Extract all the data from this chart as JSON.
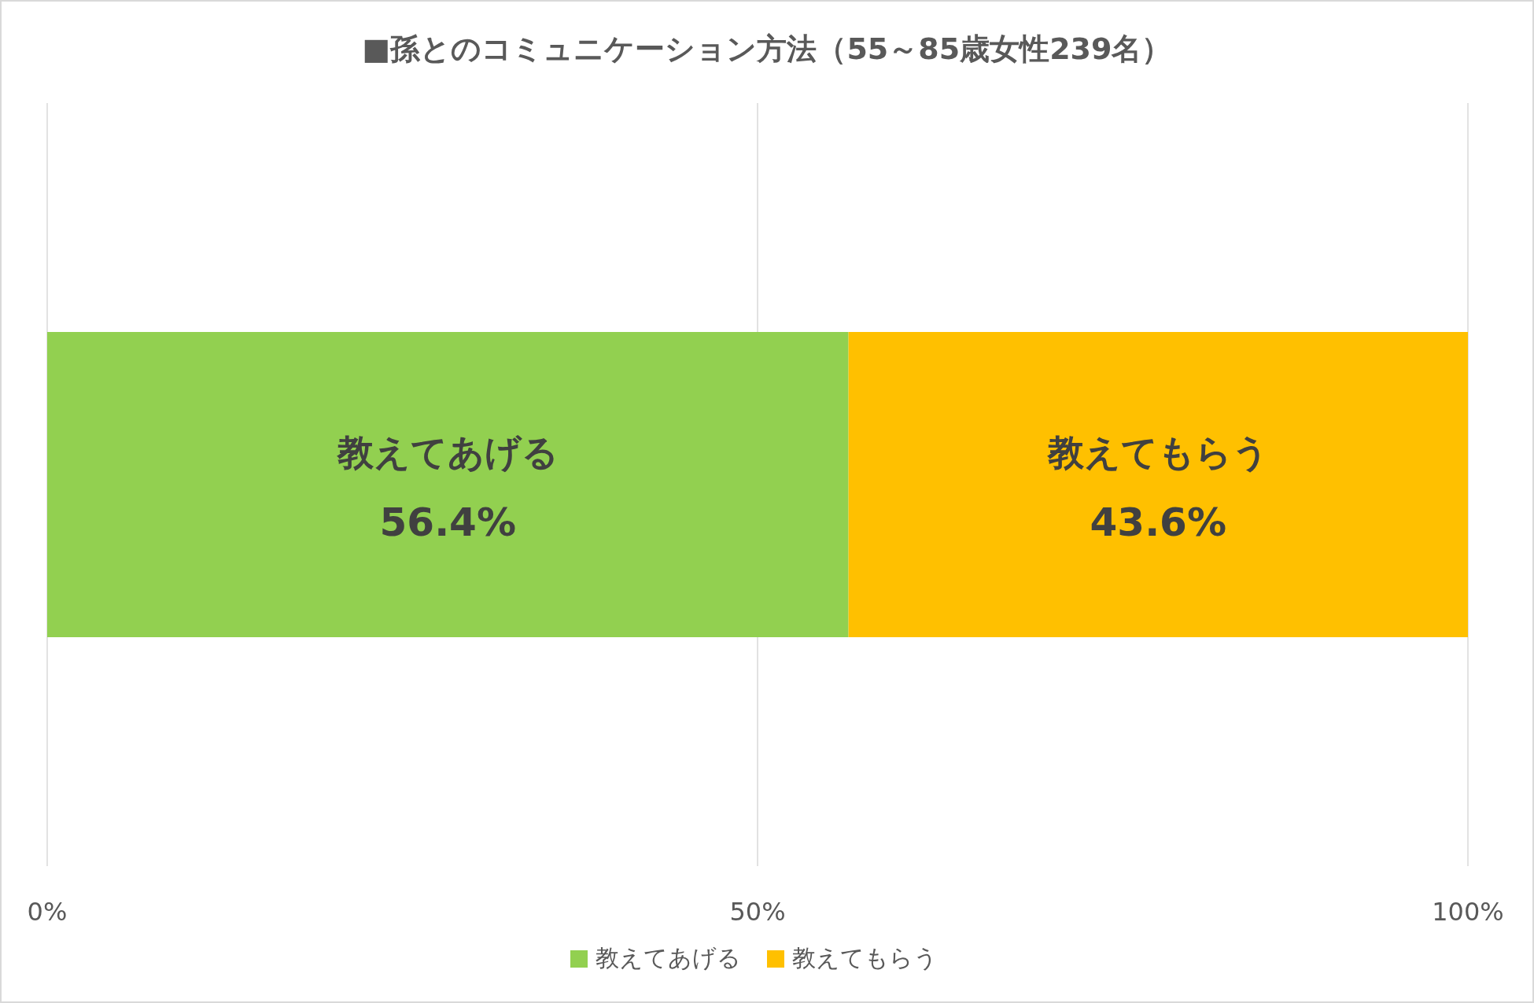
{
  "chart_data": {
    "type": "bar",
    "orientation": "horizontal",
    "stacked": true,
    "title": "■孫とのコミュニケーション方法（55～85歳女性239名）",
    "categories": [
      null
    ],
    "series": [
      {
        "name": "教えてあげる",
        "color": "#92d050",
        "values": [
          56.4
        ],
        "value_labels": [
          "56.4%"
        ]
      },
      {
        "name": "教えてもらう",
        "color": "#ffc000",
        "values": [
          43.6
        ],
        "value_labels": [
          "43.6%"
        ]
      }
    ],
    "xlim": [
      0,
      100
    ],
    "xticks": [
      {
        "value": 0,
        "label": "0%"
      },
      {
        "value": 50,
        "label": "50%"
      },
      {
        "value": 100,
        "label": "100%"
      }
    ],
    "grid": "x",
    "legend": "bottom"
  }
}
